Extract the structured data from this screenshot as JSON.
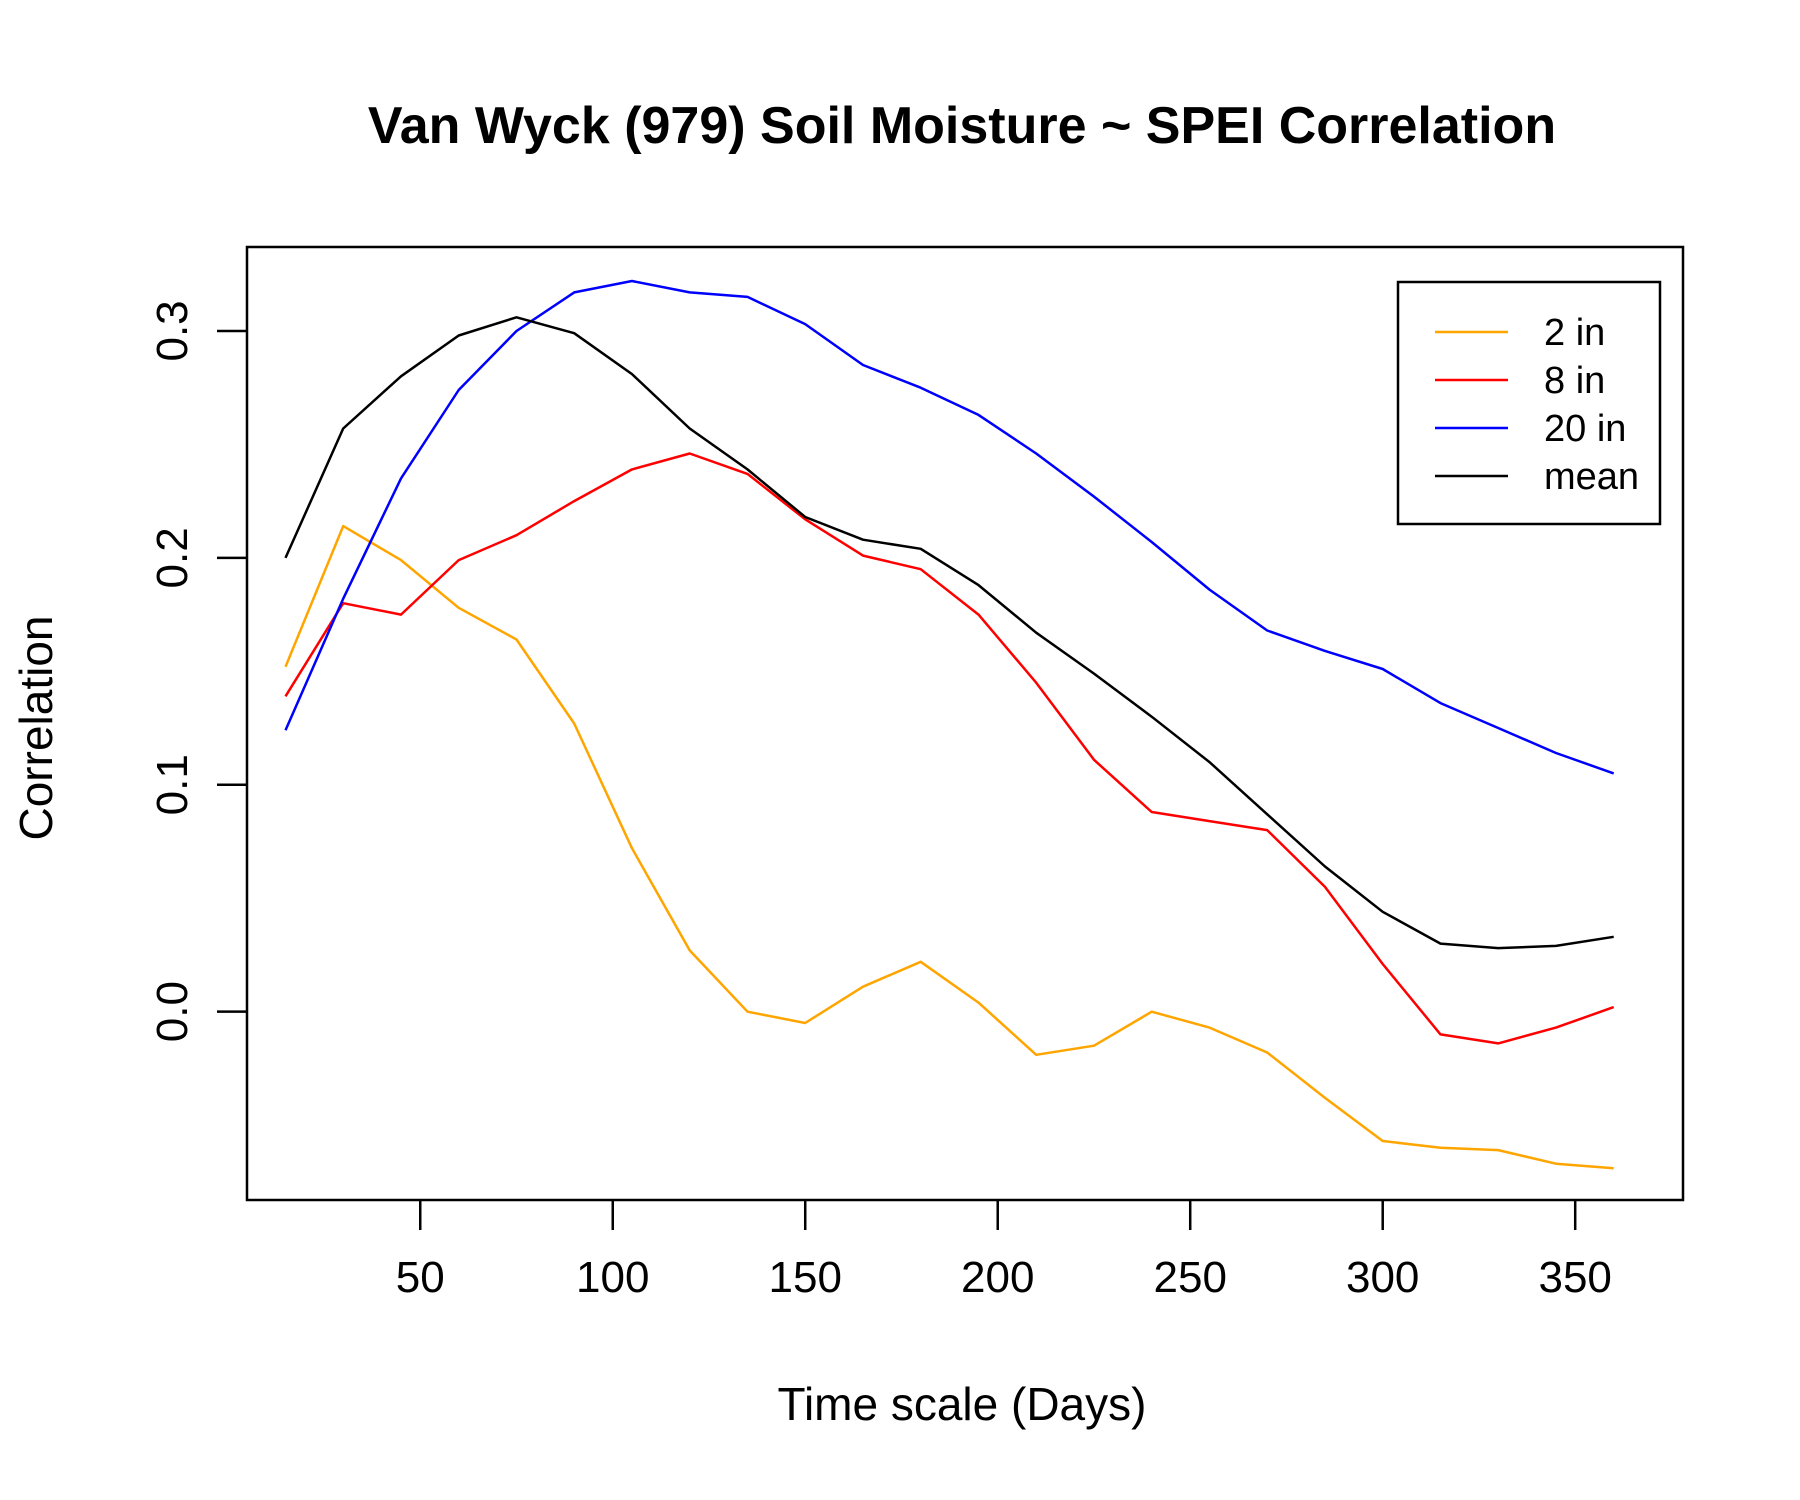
{
  "chart_data": {
    "type": "line",
    "title": "Van Wyck (979) Soil Moisture ~ SPEI Correlation",
    "xlabel": "Time scale (Days)",
    "ylabel": "Correlation",
    "xlim": [
      5,
      378
    ],
    "ylim": [
      -0.083,
      0.337
    ],
    "xticks": [
      50,
      100,
      150,
      200,
      250,
      300,
      350
    ],
    "xtick_labels": [
      "50",
      "100",
      "150",
      "200",
      "250",
      "300",
      "350"
    ],
    "yticks": [
      0.0,
      0.1,
      0.2,
      0.3
    ],
    "ytick_labels": [
      "0.0",
      "0.1",
      "0.2",
      "0.3"
    ],
    "grid": false,
    "legend_position": "top-right",
    "x": [
      15,
      30,
      45,
      60,
      75,
      90,
      105,
      120,
      135,
      150,
      165,
      180,
      195,
      210,
      225,
      240,
      255,
      270,
      285,
      300,
      315,
      330,
      345,
      360
    ],
    "series": [
      {
        "name": "2 in",
        "color": "#FFA500",
        "values": [
          0.152,
          0.214,
          0.199,
          0.178,
          0.164,
          0.127,
          0.072,
          0.027,
          0.0,
          -0.005,
          0.011,
          0.022,
          0.004,
          -0.019,
          -0.015,
          0.0,
          -0.007,
          -0.018,
          -0.038,
          -0.057,
          -0.06,
          -0.061,
          -0.067,
          -0.069
        ]
      },
      {
        "name": "8 in",
        "color": "#FF0000",
        "values": [
          0.139,
          0.18,
          0.175,
          0.199,
          0.21,
          0.225,
          0.239,
          0.246,
          0.237,
          0.217,
          0.201,
          0.195,
          0.175,
          0.145,
          0.111,
          0.088,
          0.084,
          0.08,
          0.055,
          0.021,
          -0.01,
          -0.014,
          -0.007,
          0.002
        ]
      },
      {
        "name": "20 in",
        "color": "#0000FF",
        "values": [
          0.124,
          0.182,
          0.235,
          0.274,
          0.3,
          0.317,
          0.322,
          0.317,
          0.315,
          0.303,
          0.285,
          0.275,
          0.263,
          0.246,
          0.227,
          0.207,
          0.186,
          0.168,
          0.159,
          0.151,
          0.136,
          0.125,
          0.114,
          0.105
        ]
      },
      {
        "name": "mean",
        "color": "#000000",
        "values": [
          0.2,
          0.257,
          0.28,
          0.298,
          0.306,
          0.299,
          0.281,
          0.257,
          0.239,
          0.218,
          0.208,
          0.204,
          0.188,
          0.167,
          0.149,
          0.13,
          0.11,
          0.087,
          0.064,
          0.044,
          0.03,
          0.028,
          0.029,
          0.033
        ]
      }
    ]
  }
}
